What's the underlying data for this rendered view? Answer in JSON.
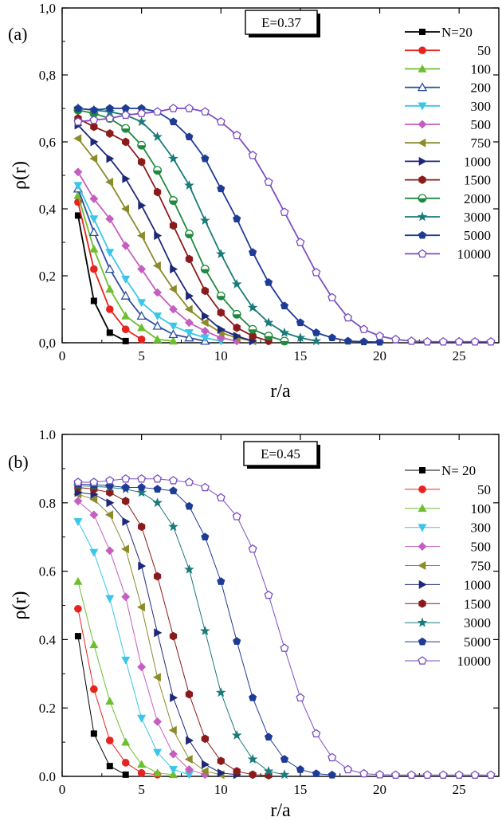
{
  "chart_data": [
    {
      "type": "line",
      "panel_label": "(a)",
      "annotation": "E=0.37",
      "xlabel": "r/a",
      "ylabel": "ρ(r)",
      "xlim": [
        0,
        27.5
      ],
      "ylim": [
        0,
        1.0
      ],
      "xticks": [
        0,
        5,
        10,
        15,
        20,
        25
      ],
      "xtick_labels": [
        "0",
        "5",
        "10",
        "15",
        "20",
        "25"
      ],
      "yticks": [
        0,
        0.2,
        0.4,
        0.6,
        0.8,
        1.0
      ],
      "ytick_labels": [
        "0,0",
        "0,2",
        "0,4",
        "0,6",
        "0,8",
        "1,0"
      ],
      "legend_position": "top-right",
      "series": [
        {
          "name": "N=20",
          "color": "#000000",
          "marker": "square",
          "x": [
            1,
            2,
            3,
            4
          ],
          "y": [
            0.38,
            0.125,
            0.03,
            0.005
          ]
        },
        {
          "name": "50",
          "color": "#e8231f",
          "marker": "circle",
          "x": [
            1,
            2,
            3,
            4,
            5
          ],
          "y": [
            0.42,
            0.22,
            0.1,
            0.04,
            0.01
          ]
        },
        {
          "name": "100",
          "color": "#6dbf2f",
          "marker": "triangle-up",
          "x": [
            1,
            2,
            3,
            4,
            5,
            6,
            7
          ],
          "y": [
            0.44,
            0.28,
            0.16,
            0.08,
            0.045,
            0.01,
            0.005
          ]
        },
        {
          "name": "200",
          "color": "#2e4f9e",
          "marker": "triangle-up-open",
          "x": [
            1,
            2,
            3,
            4,
            5,
            6,
            7,
            8,
            9
          ],
          "y": [
            0.46,
            0.33,
            0.22,
            0.14,
            0.08,
            0.05,
            0.025,
            0.015,
            0.005
          ]
        },
        {
          "name": "300",
          "color": "#3ac6e8",
          "marker": "triangle-down",
          "x": [
            1,
            2,
            3,
            4,
            5,
            6,
            7,
            8,
            9,
            10
          ],
          "y": [
            0.47,
            0.37,
            0.27,
            0.19,
            0.12,
            0.08,
            0.05,
            0.03,
            0.015,
            0.005
          ]
        },
        {
          "name": "500",
          "color": "#c45ec0",
          "marker": "diamond",
          "x": [
            1,
            2,
            3,
            4,
            5,
            6,
            7,
            8,
            9,
            10,
            11
          ],
          "y": [
            0.51,
            0.43,
            0.37,
            0.29,
            0.22,
            0.15,
            0.1,
            0.06,
            0.035,
            0.015,
            0.005
          ]
        },
        {
          "name": "750",
          "color": "#8b8b2b",
          "marker": "triangle-left",
          "x": [
            1,
            2,
            3,
            4,
            5,
            6,
            7,
            8,
            9,
            10,
            11,
            12
          ],
          "y": [
            0.61,
            0.55,
            0.48,
            0.4,
            0.32,
            0.23,
            0.16,
            0.1,
            0.06,
            0.03,
            0.015,
            0.005
          ]
        },
        {
          "name": "1000",
          "color": "#1e2878",
          "marker": "triangle-right",
          "x": [
            1,
            2,
            3,
            4,
            5,
            6,
            7,
            8,
            9,
            10,
            11,
            12
          ],
          "y": [
            0.65,
            0.6,
            0.55,
            0.49,
            0.41,
            0.32,
            0.22,
            0.14,
            0.08,
            0.04,
            0.02,
            0.005
          ]
        },
        {
          "name": "1500",
          "color": "#8b1a1a",
          "marker": "hexagon",
          "x": [
            1,
            2,
            3,
            4,
            5,
            6,
            7,
            8,
            9,
            10,
            11,
            12,
            13
          ],
          "y": [
            0.67,
            0.645,
            0.625,
            0.6,
            0.54,
            0.45,
            0.35,
            0.25,
            0.155,
            0.09,
            0.045,
            0.02,
            0.005
          ]
        },
        {
          "name": "2000",
          "color": "#1f8a3d",
          "marker": "circle-half",
          "x": [
            1,
            2,
            3,
            4,
            5,
            6,
            7,
            8,
            9,
            10,
            11,
            12,
            13,
            14
          ],
          "y": [
            0.695,
            0.685,
            0.67,
            0.64,
            0.59,
            0.515,
            0.425,
            0.325,
            0.22,
            0.14,
            0.085,
            0.04,
            0.02,
            0.005
          ]
        },
        {
          "name": "3000",
          "color": "#1a7a7a",
          "marker": "star",
          "x": [
            1,
            2,
            3,
            4,
            5,
            6,
            7,
            8,
            9,
            10,
            11,
            12,
            13,
            14,
            15,
            16
          ],
          "y": [
            0.7,
            0.695,
            0.69,
            0.68,
            0.66,
            0.615,
            0.55,
            0.47,
            0.365,
            0.265,
            0.175,
            0.105,
            0.06,
            0.03,
            0.015,
            0.005
          ]
        },
        {
          "name": "5000",
          "color": "#1e3c96",
          "marker": "pentagon",
          "x": [
            1,
            2,
            3,
            4,
            5,
            6,
            7,
            8,
            9,
            10,
            11,
            12,
            13,
            14,
            15,
            16,
            17,
            18,
            19,
            20
          ],
          "y": [
            0.7,
            0.695,
            0.7,
            0.7,
            0.7,
            0.69,
            0.66,
            0.615,
            0.55,
            0.46,
            0.37,
            0.27,
            0.18,
            0.11,
            0.06,
            0.03,
            0.015,
            0.005,
            0.003,
            0.002
          ]
        },
        {
          "name": "10000",
          "color": "#7a4ec0",
          "marker": "pentagon-open",
          "x": [
            1,
            2,
            3,
            4,
            5,
            6,
            7,
            8,
            9,
            10,
            11,
            12,
            13,
            14,
            15,
            16,
            17,
            18,
            19,
            20,
            21,
            22,
            23,
            24,
            25,
            26,
            27
          ],
          "y": [
            0.66,
            0.665,
            0.67,
            0.68,
            0.685,
            0.69,
            0.7,
            0.7,
            0.69,
            0.66,
            0.62,
            0.56,
            0.48,
            0.39,
            0.3,
            0.21,
            0.135,
            0.075,
            0.04,
            0.02,
            0.01,
            0.005,
            0.003,
            0.003,
            0.003,
            0.003,
            0.003
          ]
        }
      ]
    },
    {
      "type": "line",
      "panel_label": "(b)",
      "annotation": "E=0.45",
      "xlabel": "r/a",
      "ylabel": "ρ(r)",
      "xlim": [
        0,
        27.5
      ],
      "ylim": [
        0,
        1.0
      ],
      "xticks": [
        0,
        5,
        10,
        15,
        20,
        25
      ],
      "xtick_labels": [
        "0",
        "5",
        "10",
        "15",
        "20",
        "25"
      ],
      "yticks": [
        0,
        0.2,
        0.4,
        0.6,
        0.8,
        1.0
      ],
      "ytick_labels": [
        "0.0",
        "0.2",
        "0.4",
        "0.6",
        "0.8",
        "1.0"
      ],
      "legend_position": "top-right",
      "series": [
        {
          "name": "N= 20",
          "color": "#000000",
          "marker": "square",
          "x": [
            1,
            2,
            3,
            4
          ],
          "y": [
            0.41,
            0.125,
            0.03,
            0.005
          ]
        },
        {
          "name": "50",
          "color": "#e8231f",
          "marker": "circle",
          "x": [
            1,
            2,
            3,
            4,
            5,
            6
          ],
          "y": [
            0.49,
            0.255,
            0.105,
            0.04,
            0.01,
            0.005
          ]
        },
        {
          "name": "100",
          "color": "#6dbf2f",
          "marker": "triangle-up",
          "x": [
            1,
            2,
            3,
            4,
            5,
            6,
            7
          ],
          "y": [
            0.57,
            0.385,
            0.22,
            0.1,
            0.035,
            0.01,
            0.005
          ]
        },
        {
          "name": "300",
          "color": "#3ac6e8",
          "marker": "triangle-down",
          "x": [
            1,
            2,
            3,
            4,
            5,
            6,
            7,
            8
          ],
          "y": [
            0.745,
            0.655,
            0.52,
            0.34,
            0.17,
            0.07,
            0.02,
            0.005
          ]
        },
        {
          "name": "500",
          "color": "#c45ec0",
          "marker": "diamond",
          "x": [
            1,
            2,
            3,
            4,
            5,
            6,
            7,
            8,
            9
          ],
          "y": [
            0.805,
            0.765,
            0.66,
            0.525,
            0.32,
            0.16,
            0.065,
            0.02,
            0.005
          ]
        },
        {
          "name": "750",
          "color": "#8b8b2b",
          "marker": "triangle-left",
          "x": [
            1,
            2,
            3,
            4,
            5,
            6,
            7,
            8,
            9,
            10
          ],
          "y": [
            0.825,
            0.81,
            0.765,
            0.665,
            0.495,
            0.29,
            0.135,
            0.05,
            0.015,
            0.005
          ]
        },
        {
          "name": "1000",
          "color": "#1e2878",
          "marker": "triangle-right",
          "x": [
            1,
            2,
            3,
            4,
            5,
            6,
            7,
            8,
            9,
            10,
            11
          ],
          "y": [
            0.83,
            0.825,
            0.8,
            0.745,
            0.615,
            0.42,
            0.23,
            0.105,
            0.035,
            0.01,
            0.005
          ]
        },
        {
          "name": "1500",
          "color": "#8b1a1a",
          "marker": "hexagon",
          "x": [
            1,
            2,
            3,
            4,
            5,
            6,
            7,
            8,
            9,
            10,
            11,
            12,
            13
          ],
          "y": [
            0.845,
            0.84,
            0.83,
            0.805,
            0.73,
            0.585,
            0.41,
            0.24,
            0.11,
            0.045,
            0.015,
            0.005,
            0.003
          ]
        },
        {
          "name": "3000",
          "color": "#1a7a7a",
          "marker": "star",
          "x": [
            1,
            2,
            3,
            4,
            5,
            6,
            7,
            8,
            9,
            10,
            11,
            12,
            13,
            14
          ],
          "y": [
            0.85,
            0.848,
            0.845,
            0.84,
            0.83,
            0.8,
            0.73,
            0.605,
            0.425,
            0.245,
            0.12,
            0.05,
            0.015,
            0.005
          ]
        },
        {
          "name": "5000",
          "color": "#1e3c96",
          "marker": "pentagon",
          "x": [
            1,
            2,
            3,
            4,
            5,
            6,
            7,
            8,
            9,
            10,
            11,
            12,
            13,
            14,
            15,
            16,
            17
          ],
          "y": [
            0.855,
            0.853,
            0.85,
            0.845,
            0.845,
            0.84,
            0.835,
            0.79,
            0.7,
            0.57,
            0.395,
            0.23,
            0.115,
            0.05,
            0.02,
            0.008,
            0.004
          ]
        },
        {
          "name": "10000",
          "color": "#7a4ec0",
          "marker": "pentagon-open",
          "x": [
            1,
            2,
            3,
            4,
            5,
            6,
            7,
            8,
            9,
            10,
            11,
            12,
            13,
            14,
            15,
            16,
            17,
            18,
            19,
            20,
            21,
            22,
            23,
            24,
            25,
            26,
            27
          ],
          "y": [
            0.86,
            0.86,
            0.865,
            0.87,
            0.87,
            0.87,
            0.865,
            0.86,
            0.845,
            0.815,
            0.76,
            0.665,
            0.53,
            0.375,
            0.23,
            0.125,
            0.055,
            0.02,
            0.008,
            0.005,
            0.004,
            0.004,
            0.004,
            0.004,
            0.004,
            0.004,
            0.004
          ]
        }
      ]
    }
  ]
}
